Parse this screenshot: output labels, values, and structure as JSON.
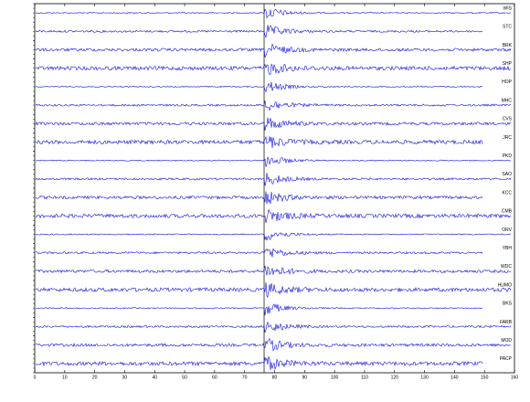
{
  "chart_data": {
    "type": "seismogram",
    "traces": [
      "WIS",
      "STC",
      "BRK",
      "SHP",
      "HOP",
      "MHC",
      "CVS",
      "JRC",
      "PKD",
      "SAO",
      "KCC",
      "CMB",
      "ORV",
      "YBH",
      "WDC",
      "HUMO",
      "BKS",
      "FARB",
      "MOD",
      "PACP"
    ],
    "xlim": [
      0,
      160
    ],
    "xticks": [
      0,
      10,
      20,
      30,
      40,
      50,
      60,
      70,
      80,
      90,
      100,
      110,
      120,
      130,
      140,
      150,
      160
    ],
    "event_time": 76.5,
    "color": "#1010e0"
  }
}
